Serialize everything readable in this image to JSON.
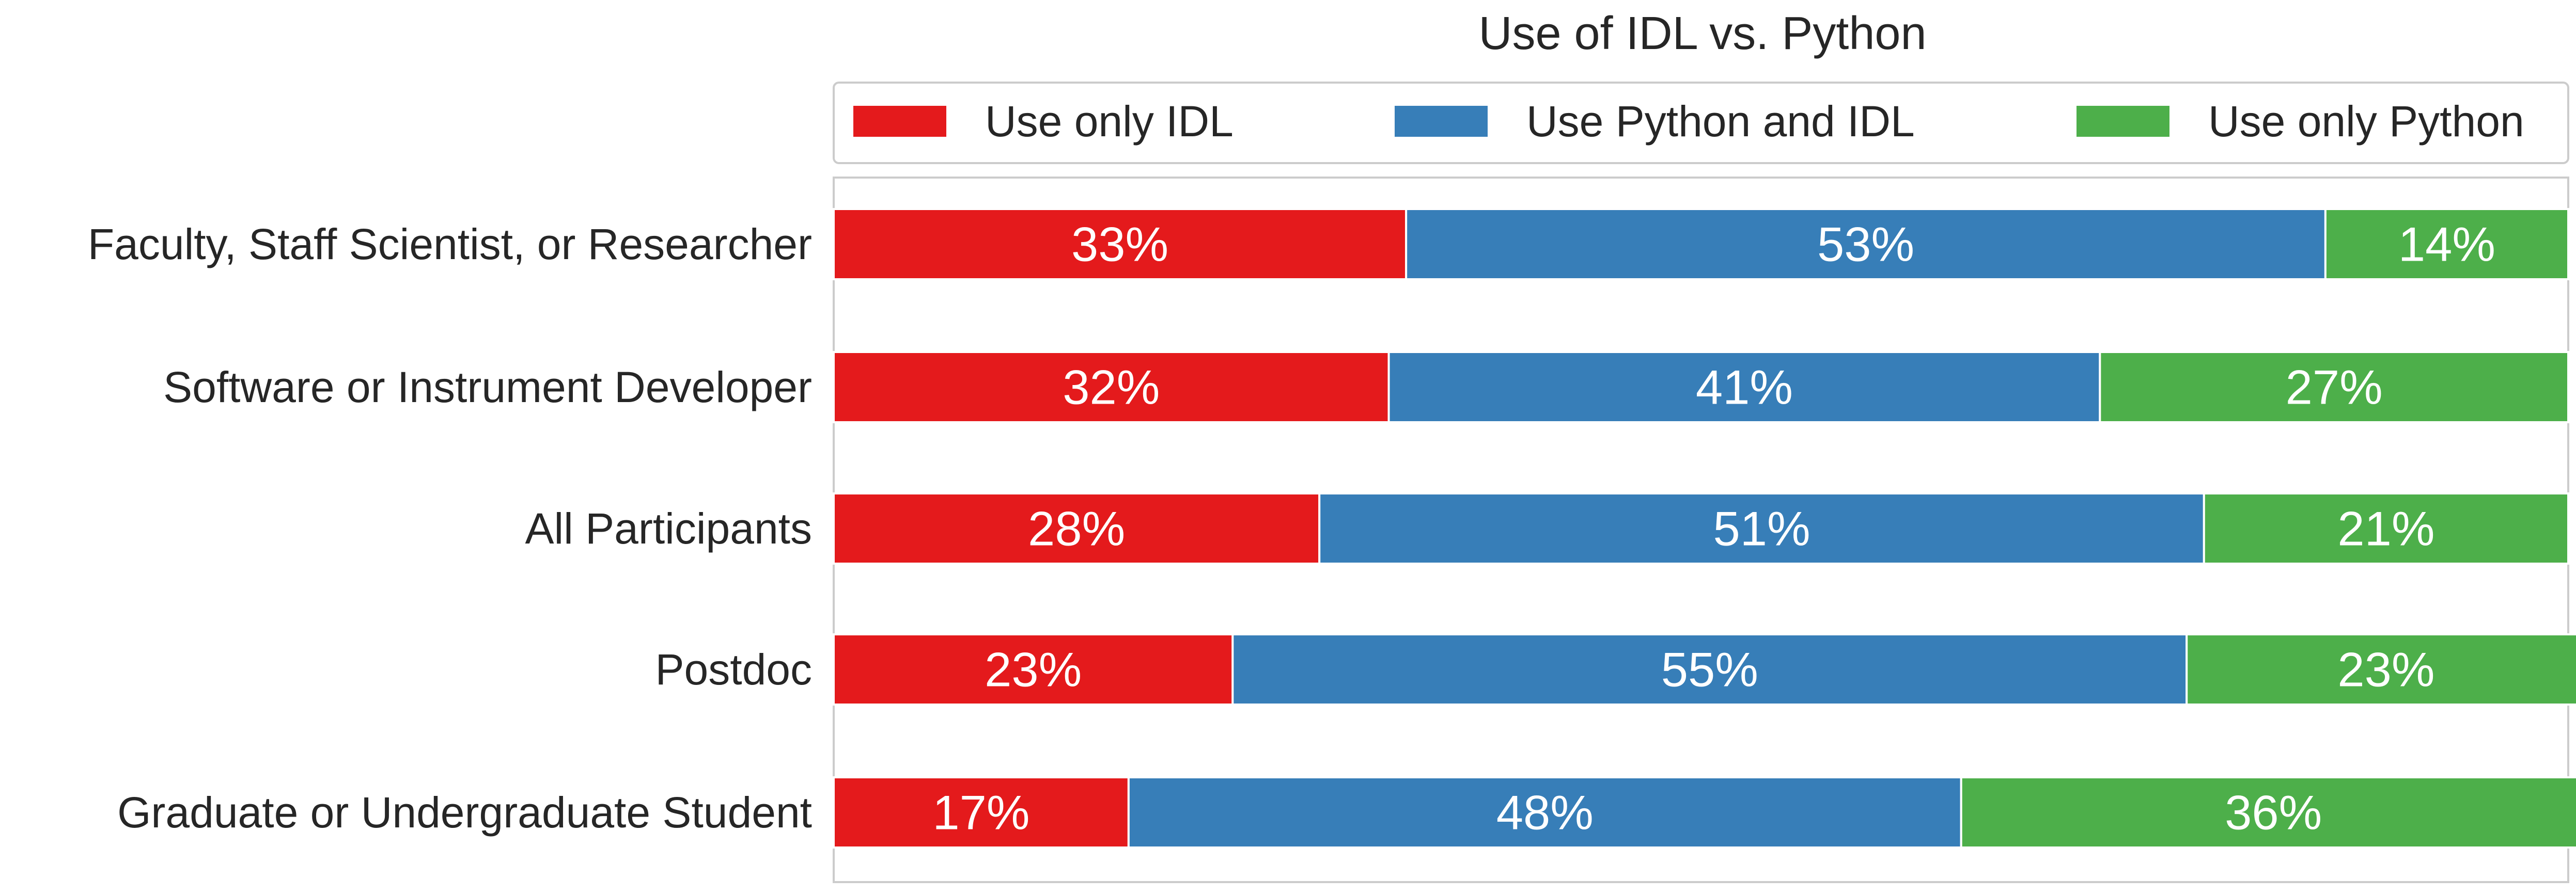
{
  "chart_data": {
    "type": "bar",
    "orientation": "horizontal",
    "stacked": true,
    "title": "Use of IDL vs. Python",
    "xlabel": "",
    "ylabel": "",
    "xlim": [
      0,
      100
    ],
    "legend_position": "top",
    "categories": [
      "Faculty, Staff Scientist, or Researcher",
      "Software or Instrument Developer",
      "All Participants",
      "Postdoc",
      "Graduate or Undergraduate Student"
    ],
    "series": [
      {
        "name": "Use only IDL",
        "color": "#e41a1c",
        "values": [
          33,
          32,
          28,
          23,
          17
        ],
        "labels": [
          "33%",
          "32%",
          "28%",
          "23%",
          "17%"
        ]
      },
      {
        "name": "Use Python and IDL",
        "color": "#377eb8",
        "values": [
          53,
          41,
          51,
          55,
          48
        ],
        "labels": [
          "53%",
          "41%",
          "51%",
          "55%",
          "48%"
        ]
      },
      {
        "name": "Use only Python",
        "color": "#4daf4a",
        "values": [
          14,
          27,
          21,
          23,
          36
        ],
        "labels": [
          "14%",
          "27%",
          "21%",
          "23%",
          "36%"
        ]
      }
    ]
  }
}
